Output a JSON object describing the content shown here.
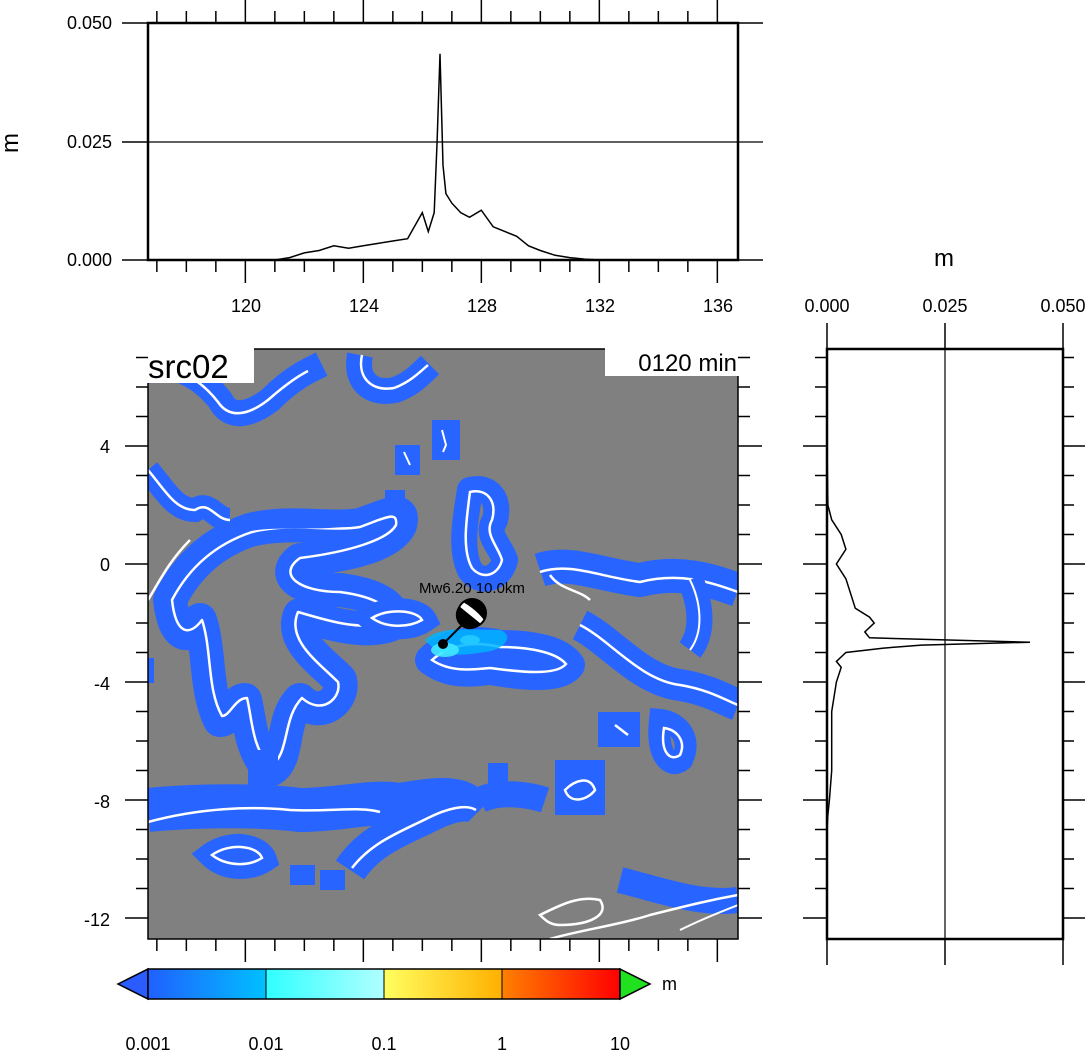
{
  "top_panel": {
    "ylabel": "m",
    "yticks": [
      "0.000",
      "0.025",
      "0.050"
    ],
    "xticks": [
      "120",
      "124",
      "128",
      "132",
      "136"
    ]
  },
  "right_panel": {
    "xlabel": "m",
    "xticks": [
      "0.000",
      "0.025",
      "0.050"
    ]
  },
  "map_panel": {
    "source_label": "src02",
    "time_label": "0120 min",
    "quake_label": "Mw6.20  10.0km",
    "yticks": [
      "4",
      "0",
      "-4",
      "-8",
      "-12"
    ],
    "colors": {
      "ocean": "#808080",
      "coast": "#ffffff",
      "shallow": "#2864ff",
      "cyan": "#00c8ff"
    }
  },
  "colorbar": {
    "unit": "m",
    "ticks": [
      "0.001",
      "0.01",
      "0.1",
      "1",
      "10"
    ],
    "colors": [
      "#2060ff",
      "#00c0ff",
      "#40ffff",
      "#ffff60",
      "#ffa000",
      "#ff2000",
      "#20e020"
    ]
  },
  "chart_data": [
    {
      "type": "line",
      "title": "",
      "xlabel": "",
      "ylabel": "m",
      "xlim": [
        116.5,
        137
      ],
      "ylim": [
        0,
        0.05
      ],
      "grid_lines": [
        0.025
      ],
      "series": [
        {
          "x": [
            120,
            121,
            121.5,
            122,
            122.5,
            123,
            123.5,
            124,
            124.5,
            125,
            125.5,
            126,
            126.2,
            126.4,
            126.5,
            126.6,
            126.7,
            126.8,
            127,
            127.3,
            127.6,
            128,
            128.4,
            128.8,
            129.2,
            129.6,
            130,
            130.5,
            131,
            131.5,
            132,
            133
          ],
          "y": [
            0,
            0,
            0.0005,
            0.0015,
            0.002,
            0.003,
            0.0025,
            0.003,
            0.0035,
            0.004,
            0.0045,
            0.01,
            0.006,
            0.01,
            0.025,
            0.0435,
            0.02,
            0.014,
            0.012,
            0.01,
            0.009,
            0.0105,
            0.007,
            0.006,
            0.005,
            0.003,
            0.002,
            0.001,
            0.0005,
            0.0002,
            0,
            0
          ]
        }
      ]
    },
    {
      "type": "line",
      "title": "",
      "xlabel": "m",
      "ylabel": "",
      "xlim": [
        0,
        0.05
      ],
      "ylim": [
        -12.8,
        7.2
      ],
      "orientation": "vertical",
      "grid_lines": [
        0.025
      ],
      "series": [
        {
          "lat": [
            4,
            2,
            1.5,
            1,
            0.5,
            0,
            -0.5,
            -1,
            -1.5,
            -1.8,
            -2,
            -2.3,
            -2.5,
            -2.65,
            -2.75,
            -2.85,
            -3,
            -3.3,
            -3.5,
            -4,
            -5,
            -6,
            -7,
            -8,
            -8.5,
            -9
          ],
          "val": [
            0,
            0.0002,
            0.001,
            0.003,
            0.004,
            0.002,
            0.004,
            0.005,
            0.006,
            0.009,
            0.01,
            0.008,
            0.009,
            0.043,
            0.02,
            0.012,
            0.004,
            0.002,
            0.003,
            0.002,
            0.001,
            0.001,
            0.001,
            0.0005,
            0.0002,
            0
          ]
        }
      ]
    }
  ]
}
